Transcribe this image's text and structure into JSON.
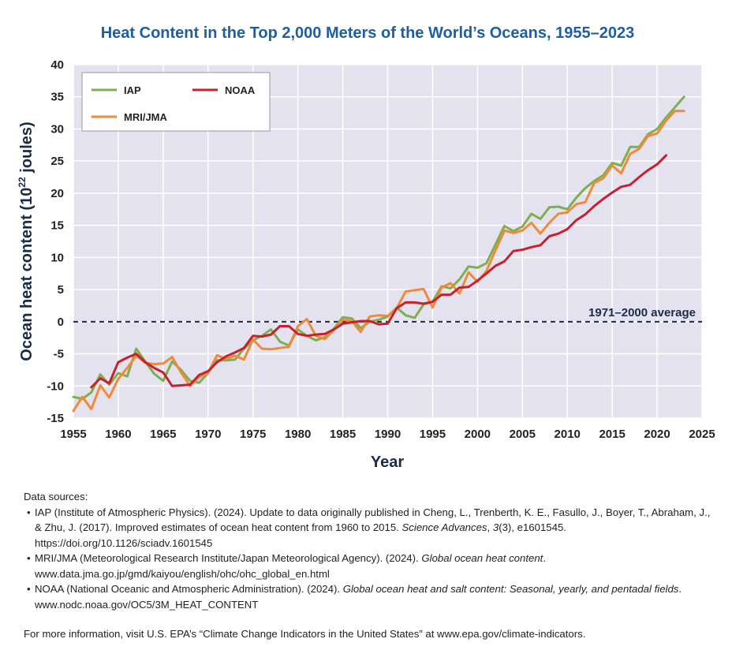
{
  "chart_data": {
    "type": "line",
    "title": "Heat Content in the Top 2,000 Meters of the World’s Oceans, 1955–2023",
    "xlabel": "Year",
    "ylabel_main": "Ocean heat content (10",
    "ylabel_sup": "22",
    "ylabel_end": " joules)",
    "xlim": [
      1955,
      2025
    ],
    "ylim": [
      -15,
      40
    ],
    "x_ticks": [
      1955,
      1960,
      1965,
      1970,
      1975,
      1980,
      1985,
      1990,
      1995,
      2000,
      2005,
      2010,
      2015,
      2020,
      2025
    ],
    "y_ticks": [
      -15,
      -10,
      -5,
      0,
      5,
      10,
      15,
      20,
      25,
      30,
      35,
      40
    ],
    "grid": true,
    "legend_position": "top-left",
    "reference_line": {
      "value": 0,
      "label": "1971–2000 average"
    },
    "series": [
      {
        "name": "IAP",
        "color": "#7db04d",
        "x": [
          1955,
          1956,
          1957,
          1958,
          1959,
          1960,
          1961,
          1962,
          1963,
          1964,
          1965,
          1966,
          1967,
          1968,
          1969,
          1970,
          1971,
          1972,
          1973,
          1974,
          1975,
          1976,
          1977,
          1978,
          1979,
          1980,
          1981,
          1982,
          1983,
          1984,
          1985,
          1986,
          1987,
          1988,
          1989,
          1990,
          1991,
          1992,
          1993,
          1994,
          1995,
          1996,
          1997,
          1998,
          1999,
          2000,
          2001,
          2002,
          2003,
          2004,
          2005,
          2006,
          2007,
          2008,
          2009,
          2010,
          2011,
          2012,
          2013,
          2014,
          2015,
          2016,
          2017,
          2018,
          2019,
          2020,
          2021,
          2022,
          2023
        ],
        "y": [
          -11.7,
          -12.0,
          -11.0,
          -8.2,
          -9.8,
          -8.0,
          -8.5,
          -4.2,
          -6.2,
          -8.1,
          -9.2,
          -6.2,
          -7.5,
          -9.2,
          -9.5,
          -8.0,
          -6.0,
          -6.0,
          -5.9,
          -4.2,
          -2.9,
          -2.2,
          -1.2,
          -3.1,
          -3.7,
          -1.2,
          -2.2,
          -2.9,
          -2.4,
          -1.1,
          0.7,
          0.5,
          -1.0,
          0.0,
          0.3,
          0.8,
          2.2,
          1.0,
          0.6,
          2.7,
          3.1,
          5.5,
          5.2,
          6.6,
          8.6,
          8.4,
          9.1,
          12.0,
          14.9,
          14.1,
          14.8,
          16.8,
          16.0,
          17.8,
          17.9,
          17.5,
          19.3,
          20.8,
          21.9,
          22.8,
          24.7,
          24.3,
          27.2,
          27.2,
          29.2,
          30.0,
          31.8,
          33.4,
          35.0
        ]
      },
      {
        "name": "NOAA",
        "color": "#c8202f",
        "x": [
          1957,
          1958,
          1959,
          1960,
          1961,
          1962,
          1963,
          1964,
          1965,
          1966,
          1967,
          1968,
          1969,
          1970,
          1971,
          1972,
          1973,
          1974,
          1975,
          1976,
          1977,
          1978,
          1979,
          1980,
          1981,
          1982,
          1983,
          1984,
          1985,
          1986,
          1987,
          1988,
          1989,
          1990,
          1991,
          1992,
          1993,
          1994,
          1995,
          1996,
          1997,
          1998,
          1999,
          2000,
          2001,
          2002,
          2003,
          2004,
          2005,
          2006,
          2007,
          2008,
          2009,
          2010,
          2011,
          2012,
          2013,
          2014,
          2015,
          2016,
          2017,
          2018,
          2019,
          2020,
          2021
        ],
        "y": [
          -10.2,
          -8.8,
          -9.6,
          -6.3,
          -5.6,
          -5.0,
          -6.3,
          -7.2,
          -7.9,
          -10.0,
          -9.9,
          -9.8,
          -8.3,
          -7.7,
          -6.3,
          -5.4,
          -4.8,
          -4.1,
          -2.2,
          -2.3,
          -2.0,
          -0.7,
          -0.7,
          -1.9,
          -2.2,
          -2.0,
          -1.9,
          -1.2,
          -0.3,
          -0.1,
          0.1,
          0.1,
          -0.4,
          -0.3,
          2.1,
          3.0,
          3.0,
          2.8,
          3.1,
          4.2,
          4.2,
          5.3,
          5.4,
          6.4,
          7.5,
          8.7,
          9.4,
          11.0,
          11.2,
          11.6,
          11.9,
          13.3,
          13.7,
          14.4,
          15.8,
          16.7,
          18.0,
          19.1,
          20.1,
          21.0,
          21.3,
          22.5,
          23.6,
          24.5,
          25.9
        ]
      },
      {
        "name": "MRI/JMA",
        "color": "#f08a3b",
        "x": [
          1955,
          1956,
          1957,
          1958,
          1959,
          1960,
          1961,
          1962,
          1963,
          1964,
          1965,
          1966,
          1967,
          1968,
          1969,
          1970,
          1971,
          1972,
          1973,
          1974,
          1975,
          1976,
          1977,
          1978,
          1979,
          1980,
          1981,
          1982,
          1983,
          1984,
          1985,
          1986,
          1987,
          1988,
          1989,
          1990,
          1991,
          1992,
          1993,
          1994,
          1995,
          1996,
          1997,
          1998,
          1999,
          2000,
          2001,
          2002,
          2003,
          2004,
          2005,
          2006,
          2007,
          2008,
          2009,
          2010,
          2011,
          2012,
          2013,
          2014,
          2015,
          2016,
          2017,
          2018,
          2019,
          2020,
          2021,
          2022,
          2023
        ],
        "y": [
          -13.9,
          -11.7,
          -13.6,
          -9.9,
          -11.8,
          -8.9,
          -7.2,
          -5.3,
          -6.4,
          -6.6,
          -6.5,
          -5.5,
          -7.9,
          -10.0,
          -8.6,
          -8.0,
          -5.2,
          -5.8,
          -5.3,
          -5.9,
          -2.8,
          -4.2,
          -4.3,
          -4.1,
          -3.9,
          -0.7,
          0.4,
          -2.2,
          -2.7,
          -1.3,
          0.3,
          0.1,
          -1.6,
          0.8,
          1.0,
          0.9,
          2.1,
          4.7,
          4.9,
          5.1,
          2.2,
          5.3,
          6.0,
          4.4,
          7.7,
          6.2,
          7.9,
          11.1,
          14.2,
          13.8,
          14.2,
          15.4,
          13.7,
          15.4,
          16.8,
          17.0,
          18.3,
          18.6,
          21.6,
          22.3,
          24.3,
          23.1,
          26.1,
          26.9,
          28.9,
          29.3,
          31.3,
          32.8,
          32.8
        ]
      }
    ]
  },
  "sources": {
    "heading": "Data sources:",
    "iap_a": "IAP (Institute of Atmospheric Physics). (2024). Update to data originally published in Cheng, L., Trenberth, K. E., Fasullo, J., Boyer, T., Abraham, J., & Zhu, J. (2017). Improved estimates of ocean heat content from 1960 to 2015. ",
    "iap_journal": "Science Advances",
    "iap_b": ", ",
    "iap_vol": "3",
    "iap_c": "(3), e1601545. https://doi.org/10.1126/sciadv.1601545",
    "mri_a": "MRI/JMA (Meteorological Research Institute/Japan Meteorological Agency). (2024). ",
    "mri_title": "Global ocean heat content",
    "mri_b": ". www.data.jma.go.jp/gmd/kaiyou/english/ohc/ohc_global_en.html",
    "noaa_a": "NOAA (National Oceanic and Atmospheric Administration). (2024). ",
    "noaa_title": "Global ocean heat and salt content: Seasonal, yearly, and pentadal fields",
    "noaa_b": ". www.nodc.noaa.gov/OC5/3M_HEAT_CONTENT",
    "more_info": "For more information, visit U.S. EPA’s “Climate Change Indicators in the United States” at www.epa.gov/climate-indicators."
  }
}
